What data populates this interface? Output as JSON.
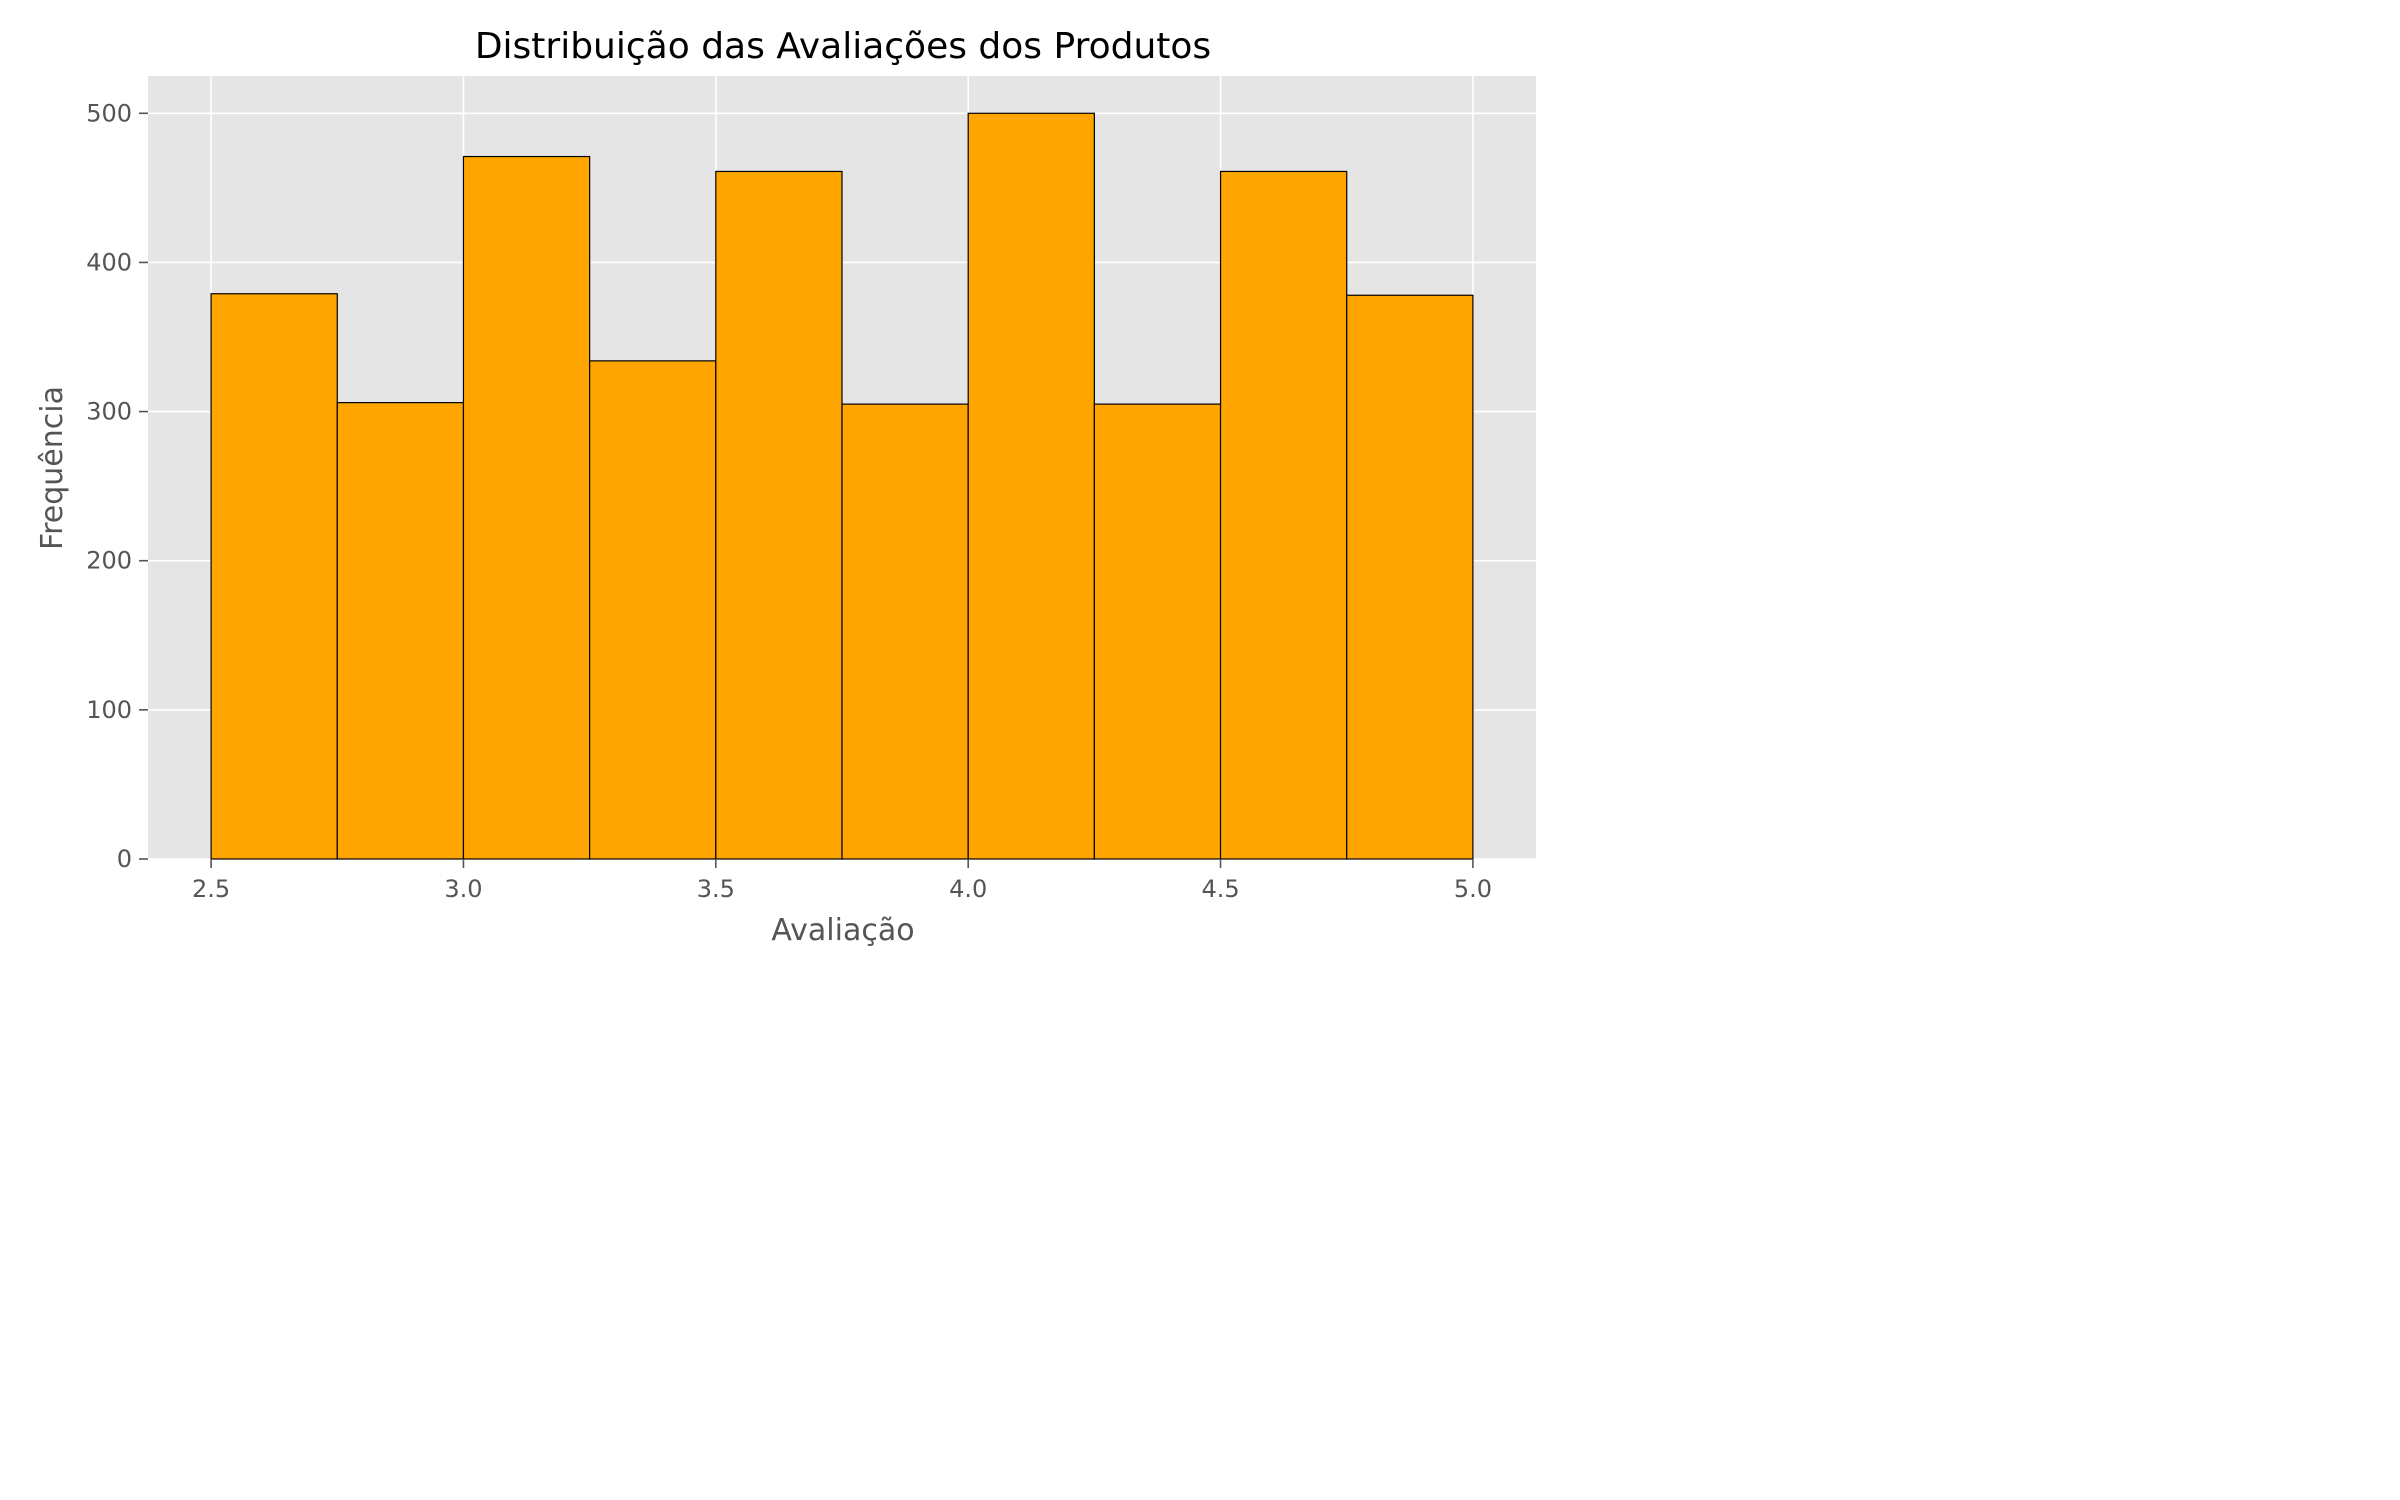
{
  "chart_data": {
    "type": "bar",
    "title": "Distribuição das Avaliações dos Produtos",
    "xlabel": "Avaliação",
    "ylabel": "Frequência",
    "xlim": [
      2.375,
      5.125
    ],
    "ylim": [
      0,
      525
    ],
    "xticks": [
      2.5,
      3.0,
      3.5,
      4.0,
      4.5,
      5.0
    ],
    "xtick_labels": [
      "2.5",
      "3.0",
      "3.5",
      "4.0",
      "4.5",
      "5.0"
    ],
    "yticks": [
      0,
      100,
      200,
      300,
      400,
      500
    ],
    "ytick_labels": [
      "0",
      "100",
      "200",
      "300",
      "400",
      "500"
    ],
    "bin_edges": [
      2.5,
      2.75,
      3.0,
      3.25,
      3.5,
      3.75,
      4.0,
      4.25,
      4.5,
      4.75,
      5.0
    ],
    "values": [
      379,
      306,
      471,
      334,
      461,
      305,
      500,
      305,
      461,
      378
    ],
    "grid": true,
    "colors": {
      "bar_fill": "#FFA500",
      "bar_edge": "#000000",
      "plot_background": "#E5E5E5",
      "grid": "#FFFFFF"
    }
  }
}
